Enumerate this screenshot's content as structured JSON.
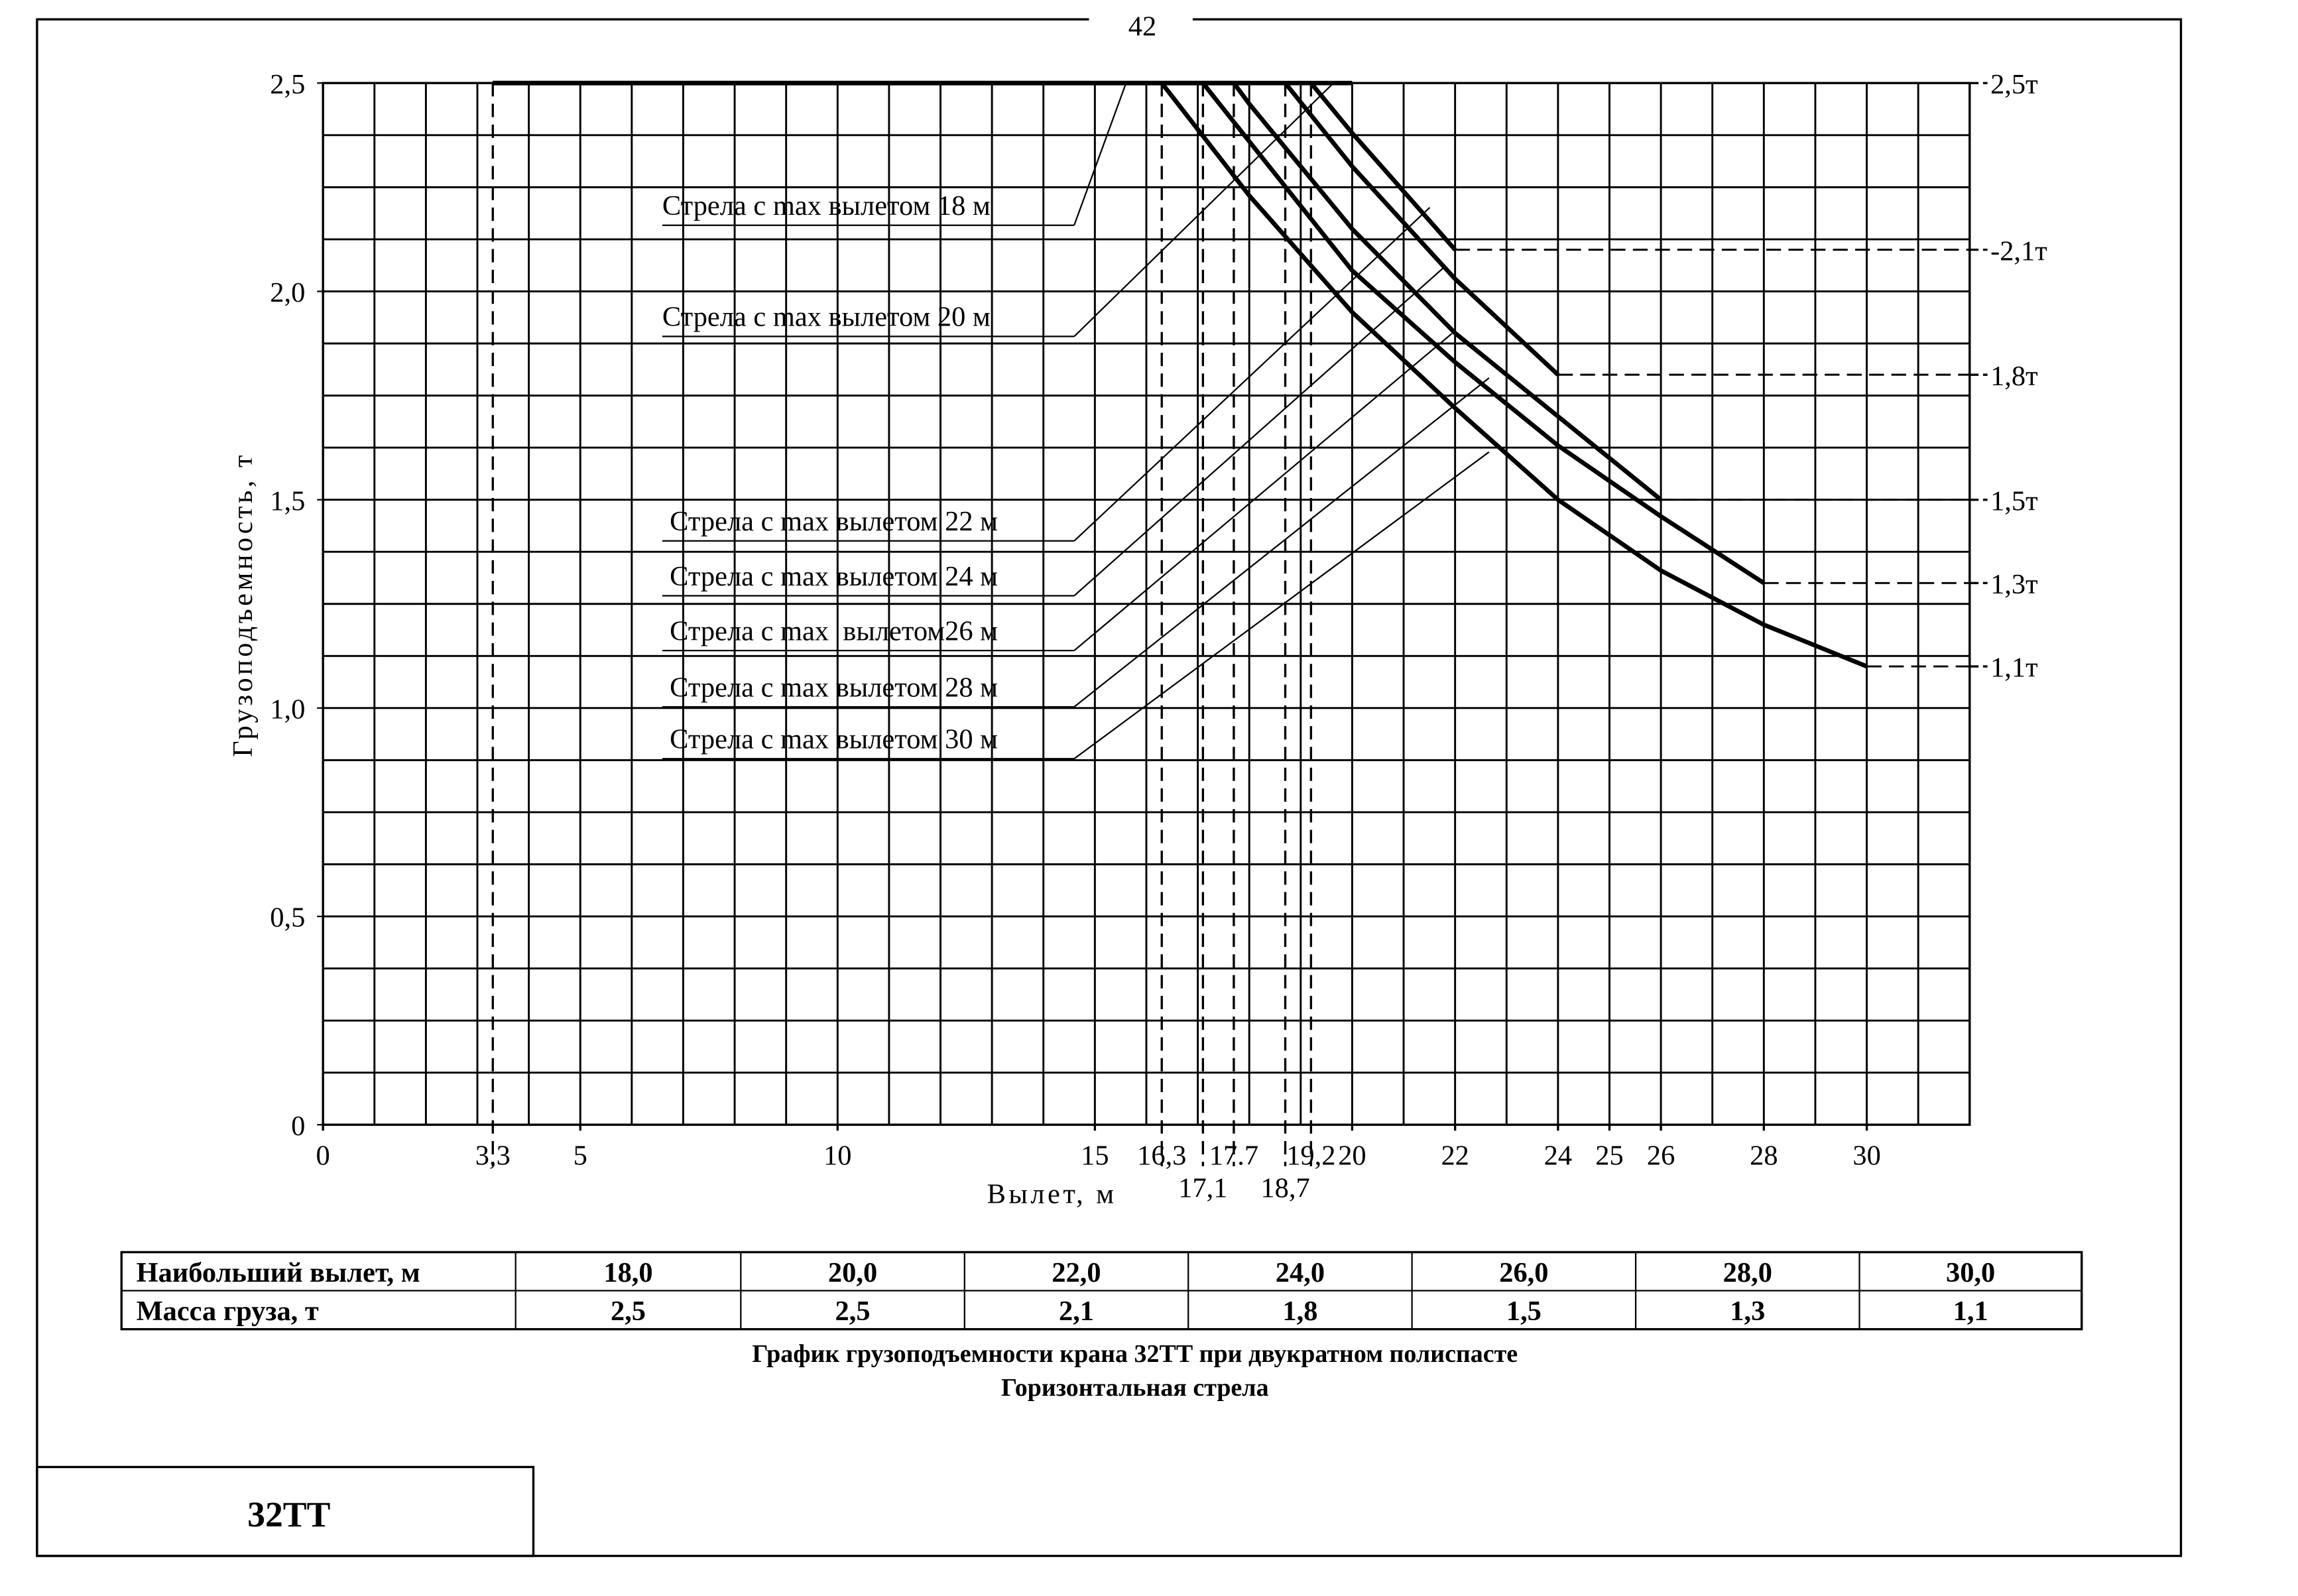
{
  "page_number": "42",
  "chart_data": {
    "type": "line",
    "x_label": "Вылет, м",
    "y_label": "Грузоподъемность, т",
    "xlim": [
      0,
      32
    ],
    "ylim": [
      0,
      2.5
    ],
    "x_grid_step": 1,
    "y_grid_step": 0.125,
    "grid": true,
    "color": "#000000",
    "xticks": [
      0,
      {
        "value": 3.3,
        "label": "3,3"
      },
      5,
      10,
      15,
      {
        "value": 16.3,
        "label": "16,3"
      },
      {
        "value": 17.1,
        "label": "17,1"
      },
      17.7,
      {
        "value": 18.7,
        "label": "18,7"
      },
      {
        "value": 19.2,
        "label": "19,2"
      },
      20,
      22,
      24,
      25,
      26,
      28,
      30
    ],
    "yticks": [
      0,
      {
        "value": 0.5,
        "label": "0,5"
      },
      {
        "value": 1,
        "label": "1,0"
      },
      {
        "value": 1.5,
        "label": "1,5"
      },
      {
        "value": 2,
        "label": "2,0"
      },
      {
        "value": 2.5,
        "label": "2,5"
      }
    ],
    "y2lim": [
      0,
      2.5
    ],
    "y2ticks": [
      {
        "value": 2.5,
        "label": "2,5т"
      },
      {
        "value": 2.1,
        "label": "-2,1т"
      },
      {
        "value": 1.8,
        "label": "1,8т"
      },
      {
        "value": 1.5,
        "label": "1,5т"
      },
      {
        "value": 1.3,
        "label": "1,3т"
      },
      {
        "value": 1.1,
        "label": "1,1т"
      }
    ],
    "series": [
      {
        "name": "Стрела с max вылетом 18 м",
        "x": [
          3.3,
          18
        ],
        "values": [
          2.5,
          2.5
        ]
      },
      {
        "name": "Стрела с max вылетом 20 м",
        "x": [
          3.3,
          20
        ],
        "values": [
          2.5,
          2.5
        ]
      },
      {
        "name": "Стрела с max вылетом 22 м",
        "x": [
          19.2,
          20,
          22
        ],
        "values": [
          2.5,
          2.38,
          2.1
        ]
      },
      {
        "name": "Стрела с max вылетом 24 м",
        "x": [
          18.7,
          20,
          22,
          24
        ],
        "values": [
          2.5,
          2.3,
          2.03,
          1.8
        ]
      },
      {
        "name": "Стрела с max  вылетом26 м",
        "x": [
          17.7,
          18,
          20,
          22,
          24,
          26
        ],
        "values": [
          2.5,
          2.45,
          2.15,
          1.9,
          1.7,
          1.5
        ]
      },
      {
        "name": "Стрела с max вылетом 28 м",
        "x": [
          17.1,
          18,
          20,
          22,
          24,
          26,
          28
        ],
        "values": [
          2.5,
          2.36,
          2.05,
          1.83,
          1.63,
          1.46,
          1.3
        ]
      },
      {
        "name": "Стрела с max вылетом 30 м",
        "x": [
          16.3,
          18,
          20,
          22,
          24,
          26,
          28,
          30
        ],
        "values": [
          2.5,
          2.23,
          1.95,
          1.72,
          1.5,
          1.33,
          1.2,
          1.1
        ]
      }
    ]
  },
  "table": {
    "rows": [
      [
        "Наибольший вылет, м",
        "18,0",
        "20,0",
        "22,0",
        "24,0",
        "26,0",
        "28,0",
        "30,0"
      ],
      [
        "Масса груза, т",
        "2,5",
        "2,5",
        "2,1",
        "1,8",
        "1,5",
        "1,3",
        "1,1"
      ]
    ]
  },
  "caption": [
    "График грузоподъемности крана 32ТТ при двукратном полиспасте",
    "Горизонтальная стрела"
  ],
  "stamp": "32ТТ"
}
